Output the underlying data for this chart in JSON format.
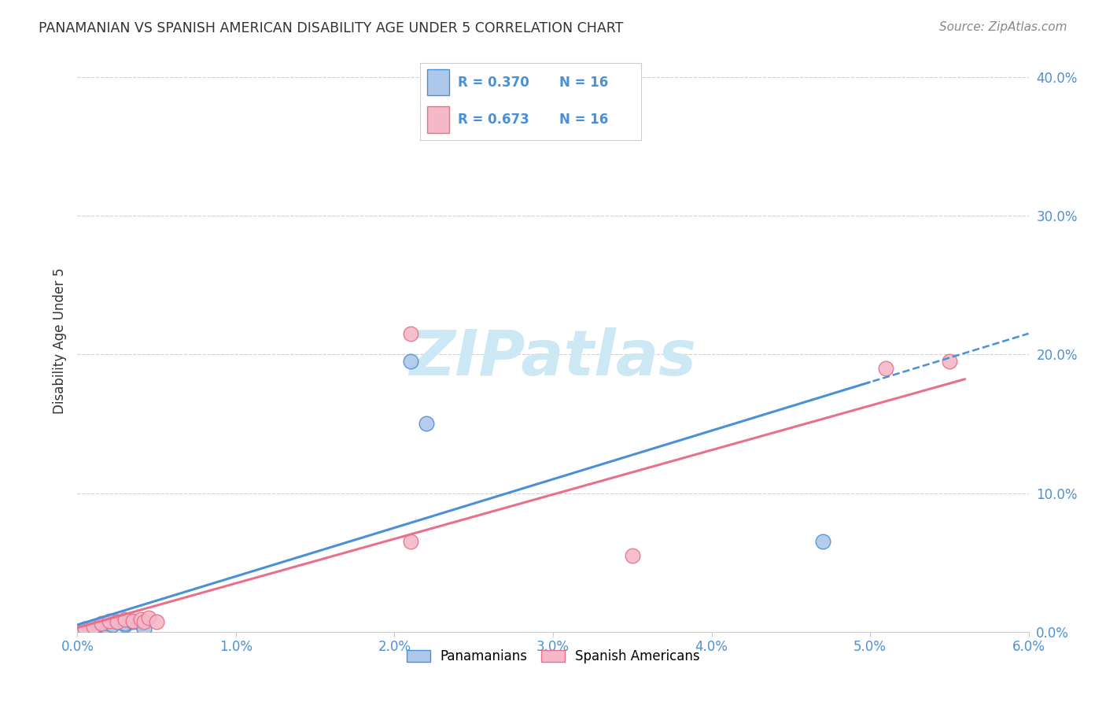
{
  "title": "PANAMANIAN VS SPANISH AMERICAN DISABILITY AGE UNDER 5 CORRELATION CHART",
  "source": "Source: ZipAtlas.com",
  "ylabel": "Disability Age Under 5",
  "xlim": [
    0.0,
    0.06
  ],
  "ylim": [
    0.0,
    0.42
  ],
  "xticks": [
    0.0,
    0.01,
    0.02,
    0.03,
    0.04,
    0.05,
    0.06
  ],
  "yticks": [
    0.0,
    0.1,
    0.2,
    0.3,
    0.4
  ],
  "xtick_labels": [
    "0.0%",
    "1.0%",
    "2.0%",
    "3.0%",
    "4.0%",
    "5.0%",
    "6.0%"
  ],
  "ytick_labels": [
    "0.0%",
    "10.0%",
    "20.0%",
    "30.0%",
    "40.0%"
  ],
  "blue_points_x": [
    0.0005,
    0.001,
    0.0013,
    0.0015,
    0.0018,
    0.002,
    0.0022,
    0.0025,
    0.003,
    0.003,
    0.0035,
    0.004,
    0.0042,
    0.021,
    0.022,
    0.047
  ],
  "blue_points_y": [
    0.002,
    0.003,
    0.004,
    0.005,
    0.004,
    0.006,
    0.005,
    0.007,
    0.005,
    0.006,
    0.007,
    0.006,
    0.002,
    0.195,
    0.15,
    0.065
  ],
  "pink_points_x": [
    0.0005,
    0.001,
    0.0015,
    0.002,
    0.0025,
    0.003,
    0.0035,
    0.004,
    0.0042,
    0.0045,
    0.005,
    0.021,
    0.021,
    0.035,
    0.051,
    0.055
  ],
  "pink_points_y": [
    0.002,
    0.004,
    0.006,
    0.008,
    0.007,
    0.009,
    0.008,
    0.009,
    0.007,
    0.01,
    0.007,
    0.215,
    0.065,
    0.055,
    0.19,
    0.195
  ],
  "blue_R": "0.370",
  "pink_R": "0.673",
  "N": "16",
  "blue_color": "#adc8e8",
  "pink_color": "#f5b8c8",
  "blue_line_color": "#4a90d9",
  "pink_line_color": "#e8708a",
  "legend_label_blue": "Panamanians",
  "legend_label_pink": "Spanish Americans",
  "background_color": "#ffffff",
  "grid_color": "#d0d0d0",
  "axis_color": "#4a90d9",
  "title_color": "#333333",
  "source_color": "#888888",
  "watermark_color": "#cce8f4",
  "blue_slope": 3.5,
  "blue_intercept": 0.005,
  "pink_slope": 3.2,
  "pink_intercept": 0.003
}
